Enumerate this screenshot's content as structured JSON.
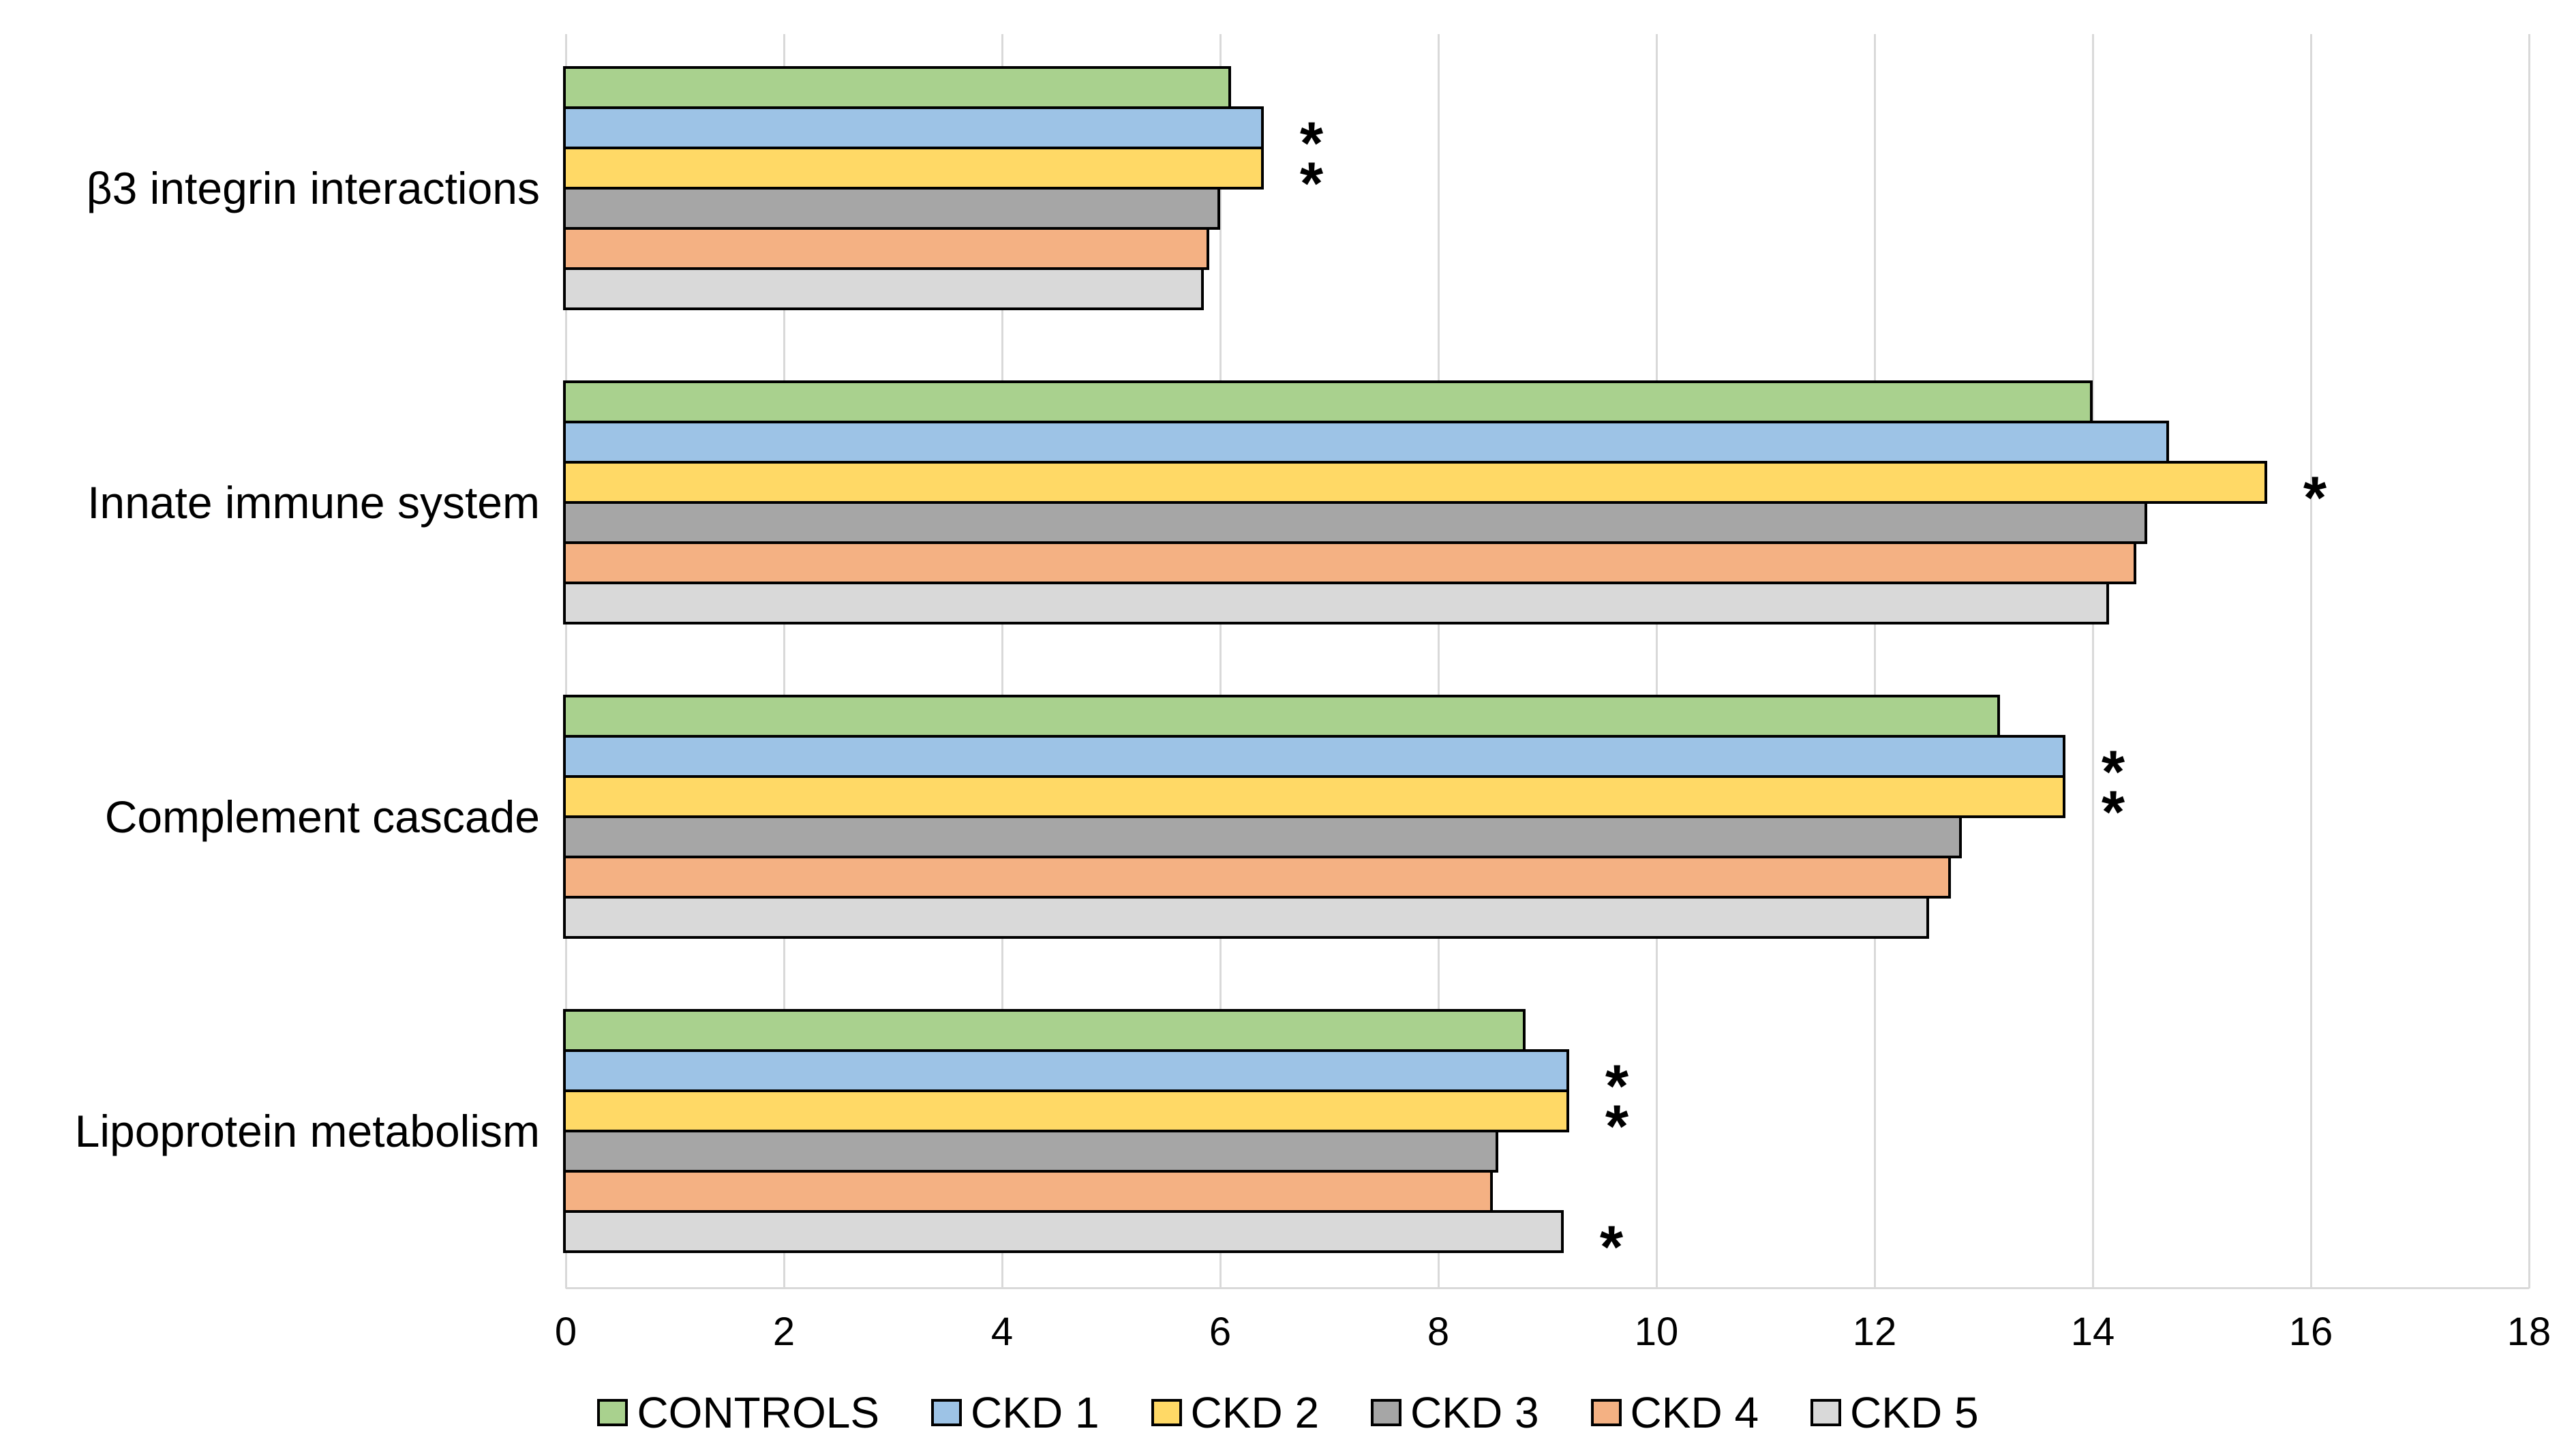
{
  "chart_data": {
    "type": "bar",
    "orientation": "horizontal",
    "title": "",
    "categories": [
      "β3 integrin interactions",
      "Innate immune system",
      "Complement cascade",
      "Lipoprotein metabolism"
    ],
    "series": [
      {
        "name": "CONTROLS",
        "color": "#A9D18E",
        "values": [
          6.1,
          14.0,
          13.15,
          8.8
        ],
        "significant": [
          false,
          false,
          false,
          false
        ]
      },
      {
        "name": "CKD 1",
        "color": "#9DC3E6",
        "values": [
          6.4,
          14.7,
          13.75,
          9.2
        ],
        "significant": [
          true,
          false,
          true,
          true
        ]
      },
      {
        "name": "CKD 2",
        "color": "#FFD966",
        "values": [
          6.4,
          15.6,
          13.75,
          9.2
        ],
        "significant": [
          true,
          true,
          true,
          true
        ]
      },
      {
        "name": "CKD 3",
        "color": "#A6A6A6",
        "values": [
          6.0,
          14.5,
          12.8,
          8.55
        ],
        "significant": [
          false,
          false,
          false,
          false
        ]
      },
      {
        "name": "CKD 4",
        "color": "#F4B183",
        "values": [
          5.9,
          14.4,
          12.7,
          8.5
        ],
        "significant": [
          false,
          false,
          false,
          false
        ]
      },
      {
        "name": "CKD 5",
        "color": "#D9D9D9",
        "values": [
          5.85,
          14.15,
          12.5,
          9.15
        ],
        "significant": [
          false,
          false,
          false,
          true
        ]
      }
    ],
    "xlabel": "",
    "ylabel": "",
    "xlim": [
      0,
      18
    ],
    "xticks": [
      0,
      2,
      4,
      6,
      8,
      10,
      12,
      14,
      16,
      18
    ],
    "grid": true,
    "gridline_color": "#D9D9D9",
    "bar_border_color": "#000000",
    "significance_marker": "*",
    "legend_position": "bottom",
    "background": "#FFFFFF",
    "text_color": "#000000"
  }
}
